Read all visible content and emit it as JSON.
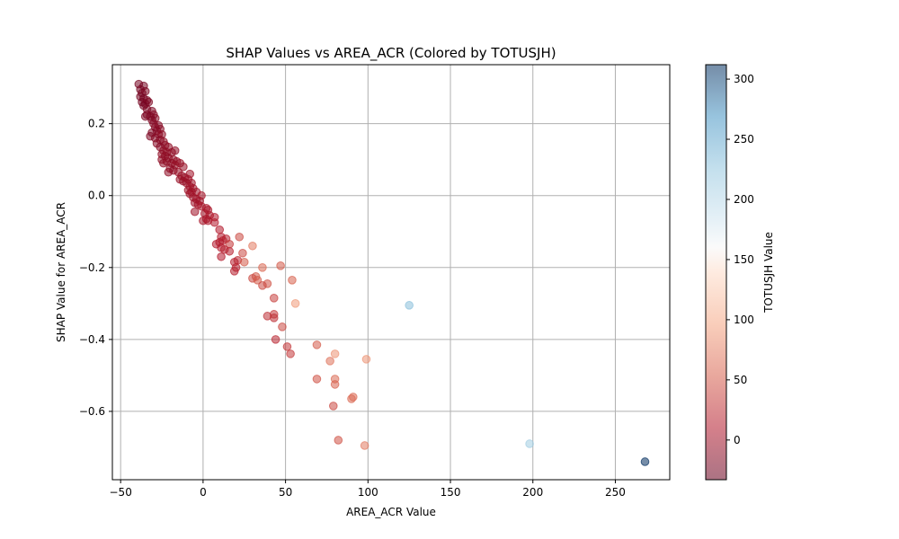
{
  "chart_data": {
    "type": "scatter",
    "title": "SHAP Values vs AREA_ACR (Colored by TOTUSJH)",
    "xlabel": "AREA_ACR Value",
    "ylabel": "SHAP Value for AREA_ACR",
    "xlim": [
      -55,
      283
    ],
    "ylim": [
      -0.79,
      0.364
    ],
    "xticks": [
      -50,
      0,
      50,
      100,
      150,
      200,
      250
    ],
    "yticks": [
      -0.6,
      -0.4,
      -0.2,
      0.0,
      0.2
    ],
    "ytick_labels": [
      "−0.6",
      "−0.4",
      "−0.2",
      "0.0",
      "0.2"
    ],
    "xtick_labels": [
      "−50",
      "0",
      "50",
      "100",
      "150",
      "200",
      "250"
    ],
    "grid": true,
    "colormap": "RdBu",
    "colorbar": {
      "label": "TOTUSJH Value",
      "range": [
        -33,
        312
      ],
      "ticks": [
        0,
        50,
        100,
        150,
        200,
        250,
        300
      ],
      "tick_labels": [
        "0",
        "50",
        "100",
        "150",
        "200",
        "250",
        "300"
      ]
    },
    "points": [
      {
        "x": -39,
        "y": 0.31,
        "c": -25
      },
      {
        "x": -36,
        "y": 0.305,
        "c": -25
      },
      {
        "x": -38,
        "y": 0.295,
        "c": -25
      },
      {
        "x": -37,
        "y": 0.285,
        "c": -25
      },
      {
        "x": -35,
        "y": 0.29,
        "c": -20
      },
      {
        "x": -38,
        "y": 0.275,
        "c": -25
      },
      {
        "x": -36,
        "y": 0.27,
        "c": -25
      },
      {
        "x": -34,
        "y": 0.265,
        "c": -20
      },
      {
        "x": -37,
        "y": 0.26,
        "c": -25
      },
      {
        "x": -35,
        "y": 0.255,
        "c": -20
      },
      {
        "x": -33,
        "y": 0.26,
        "c": -20
      },
      {
        "x": -36,
        "y": 0.25,
        "c": -25
      },
      {
        "x": -34,
        "y": 0.24,
        "c": -20
      },
      {
        "x": -31,
        "y": 0.235,
        "c": -20
      },
      {
        "x": -34,
        "y": 0.225,
        "c": -20
      },
      {
        "x": -30,
        "y": 0.225,
        "c": -15
      },
      {
        "x": -32,
        "y": 0.22,
        "c": -20
      },
      {
        "x": -29,
        "y": 0.215,
        "c": -15
      },
      {
        "x": -31,
        "y": 0.21,
        "c": -20
      },
      {
        "x": -35,
        "y": 0.22,
        "c": -20
      },
      {
        "x": -30,
        "y": 0.2,
        "c": -15
      },
      {
        "x": -27,
        "y": 0.195,
        "c": -15
      },
      {
        "x": -29,
        "y": 0.19,
        "c": -15
      },
      {
        "x": -26,
        "y": 0.185,
        "c": -15
      },
      {
        "x": -28,
        "y": 0.18,
        "c": -15
      },
      {
        "x": -31,
        "y": 0.175,
        "c": -20
      },
      {
        "x": -27,
        "y": 0.17,
        "c": -15
      },
      {
        "x": -25,
        "y": 0.17,
        "c": -10
      },
      {
        "x": -32,
        "y": 0.165,
        "c": -20
      },
      {
        "x": -29,
        "y": 0.16,
        "c": -15
      },
      {
        "x": -26,
        "y": 0.155,
        "c": -15
      },
      {
        "x": -24,
        "y": 0.15,
        "c": -10
      },
      {
        "x": -28,
        "y": 0.145,
        "c": -15
      },
      {
        "x": -23,
        "y": 0.14,
        "c": -10
      },
      {
        "x": -26,
        "y": 0.135,
        "c": -15
      },
      {
        "x": -21,
        "y": 0.135,
        "c": -10
      },
      {
        "x": -24,
        "y": 0.125,
        "c": -10
      },
      {
        "x": -22,
        "y": 0.12,
        "c": -10
      },
      {
        "x": -19,
        "y": 0.12,
        "c": -10
      },
      {
        "x": -17,
        "y": 0.125,
        "c": -10
      },
      {
        "x": -25,
        "y": 0.115,
        "c": -10
      },
      {
        "x": -23,
        "y": 0.11,
        "c": -10
      },
      {
        "x": -21,
        "y": 0.105,
        "c": -10
      },
      {
        "x": -18,
        "y": 0.1,
        "c": -10
      },
      {
        "x": -25,
        "y": 0.1,
        "c": -10
      },
      {
        "x": -22,
        "y": 0.095,
        "c": -10
      },
      {
        "x": -16,
        "y": 0.095,
        "c": -5
      },
      {
        "x": -19,
        "y": 0.09,
        "c": -10
      },
      {
        "x": -24,
        "y": 0.09,
        "c": -10
      },
      {
        "x": -14,
        "y": 0.09,
        "c": -5
      },
      {
        "x": -17,
        "y": 0.085,
        "c": -5
      },
      {
        "x": -12,
        "y": 0.08,
        "c": -5
      },
      {
        "x": -20,
        "y": 0.075,
        "c": -10
      },
      {
        "x": -18,
        "y": 0.07,
        "c": -10
      },
      {
        "x": -15,
        "y": 0.065,
        "c": -5
      },
      {
        "x": -21,
        "y": 0.065,
        "c": -10
      },
      {
        "x": -8,
        "y": 0.06,
        "c": 0
      },
      {
        "x": -13,
        "y": 0.055,
        "c": -5
      },
      {
        "x": -11,
        "y": 0.05,
        "c": -5
      },
      {
        "x": -14,
        "y": 0.045,
        "c": -5
      },
      {
        "x": -9,
        "y": 0.045,
        "c": 0
      },
      {
        "x": -12,
        "y": 0.04,
        "c": -5
      },
      {
        "x": -7,
        "y": 0.035,
        "c": 0
      },
      {
        "x": -10,
        "y": 0.035,
        "c": -5
      },
      {
        "x": -8,
        "y": 0.025,
        "c": 0
      },
      {
        "x": -6,
        "y": 0.02,
        "c": 0
      },
      {
        "x": -9,
        "y": 0.015,
        "c": 0
      },
      {
        "x": -7,
        "y": 0.01,
        "c": 0
      },
      {
        "x": -4,
        "y": 0.01,
        "c": 0
      },
      {
        "x": -8,
        "y": 0.005,
        "c": 0
      },
      {
        "x": -1,
        "y": 0.0,
        "c": 5
      },
      {
        "x": -6,
        "y": -0.005,
        "c": 0
      },
      {
        "x": -4,
        "y": -0.01,
        "c": 0
      },
      {
        "x": -2,
        "y": -0.015,
        "c": 0
      },
      {
        "x": -5,
        "y": -0.02,
        "c": 0
      },
      {
        "x": -3,
        "y": -0.025,
        "c": 0
      },
      {
        "x": -1,
        "y": -0.03,
        "c": 5
      },
      {
        "x": 2,
        "y": -0.035,
        "c": 5
      },
      {
        "x": 3,
        "y": -0.04,
        "c": 5
      },
      {
        "x": -5,
        "y": -0.045,
        "c": 0
      },
      {
        "x": 1,
        "y": -0.05,
        "c": 5
      },
      {
        "x": 4,
        "y": -0.055,
        "c": 5
      },
      {
        "x": 7,
        "y": -0.06,
        "c": 10
      },
      {
        "x": 2,
        "y": -0.065,
        "c": 5
      },
      {
        "x": 0,
        "y": -0.07,
        "c": 5
      },
      {
        "x": 3,
        "y": -0.07,
        "c": 5
      },
      {
        "x": 7,
        "y": -0.075,
        "c": 10
      },
      {
        "x": 10,
        "y": -0.095,
        "c": 10
      },
      {
        "x": 11,
        "y": -0.115,
        "c": 10
      },
      {
        "x": 22,
        "y": -0.115,
        "c": 40
      },
      {
        "x": 14,
        "y": -0.12,
        "c": 15
      },
      {
        "x": 12,
        "y": -0.125,
        "c": 15
      },
      {
        "x": 10,
        "y": -0.13,
        "c": 10
      },
      {
        "x": 8,
        "y": -0.135,
        "c": 10
      },
      {
        "x": 16,
        "y": -0.135,
        "c": 30
      },
      {
        "x": 30,
        "y": -0.14,
        "c": 70
      },
      {
        "x": 11,
        "y": -0.145,
        "c": 10
      },
      {
        "x": 13,
        "y": -0.15,
        "c": 15
      },
      {
        "x": 16,
        "y": -0.155,
        "c": 15
      },
      {
        "x": 24,
        "y": -0.16,
        "c": 40
      },
      {
        "x": 11,
        "y": -0.17,
        "c": 10
      },
      {
        "x": 21,
        "y": -0.18,
        "c": 20
      },
      {
        "x": 25,
        "y": -0.185,
        "c": 50
      },
      {
        "x": 19,
        "y": -0.185,
        "c": 15
      },
      {
        "x": 47,
        "y": -0.195,
        "c": 50
      },
      {
        "x": 36,
        "y": -0.2,
        "c": 60
      },
      {
        "x": 20,
        "y": -0.2,
        "c": 15
      },
      {
        "x": 19,
        "y": -0.21,
        "c": 15
      },
      {
        "x": 32,
        "y": -0.225,
        "c": 50
      },
      {
        "x": 30,
        "y": -0.23,
        "c": 40
      },
      {
        "x": 33,
        "y": -0.235,
        "c": 50
      },
      {
        "x": 54,
        "y": -0.235,
        "c": 55
      },
      {
        "x": 39,
        "y": -0.245,
        "c": 45
      },
      {
        "x": 36,
        "y": -0.25,
        "c": 40
      },
      {
        "x": 43,
        "y": -0.285,
        "c": 35
      },
      {
        "x": 56,
        "y": -0.3,
        "c": 90
      },
      {
        "x": 125,
        "y": -0.305,
        "c": 230
      },
      {
        "x": 43,
        "y": -0.33,
        "c": 30
      },
      {
        "x": 39,
        "y": -0.335,
        "c": 25
      },
      {
        "x": 43,
        "y": -0.34,
        "c": 25
      },
      {
        "x": 48,
        "y": -0.365,
        "c": 40
      },
      {
        "x": 44,
        "y": -0.4,
        "c": 20
      },
      {
        "x": 51,
        "y": -0.42,
        "c": 30
      },
      {
        "x": 69,
        "y": -0.415,
        "c": 50
      },
      {
        "x": 53,
        "y": -0.44,
        "c": 30
      },
      {
        "x": 80,
        "y": -0.44,
        "c": 85
      },
      {
        "x": 77,
        "y": -0.46,
        "c": 65
      },
      {
        "x": 99,
        "y": -0.455,
        "c": 85
      },
      {
        "x": 69,
        "y": -0.51,
        "c": 45
      },
      {
        "x": 80,
        "y": -0.51,
        "c": 60
      },
      {
        "x": 80,
        "y": -0.525,
        "c": 55
      },
      {
        "x": 91,
        "y": -0.56,
        "c": 60
      },
      {
        "x": 90,
        "y": -0.565,
        "c": 60
      },
      {
        "x": 79,
        "y": -0.585,
        "c": 40
      },
      {
        "x": 82,
        "y": -0.68,
        "c": 45
      },
      {
        "x": 98,
        "y": -0.695,
        "c": 70
      },
      {
        "x": 198,
        "y": -0.69,
        "c": 215
      },
      {
        "x": 268,
        "y": -0.74,
        "c": 312
      }
    ]
  }
}
